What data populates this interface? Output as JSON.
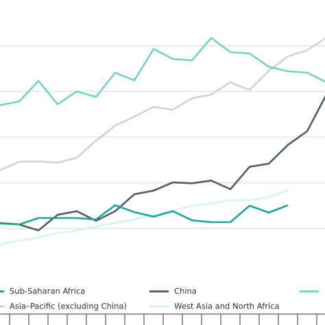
{
  "chart_data": {
    "type": "line",
    "categories": [
      null,
      null,
      null,
      null,
      null,
      null,
      null,
      null,
      null,
      null,
      null,
      null,
      null,
      null,
      null,
      null,
      null,
      null
    ],
    "ylim": [
      0,
      6
    ],
    "yticks": [
      1,
      2,
      3,
      4,
      5
    ],
    "grid": true,
    "series": [
      {
        "name": "Sub-Saharan Africa",
        "color": "#1aa39a",
        "values": [
          1.11,
          1.09,
          1.23,
          1.23,
          1.23,
          1.2,
          1.51,
          1.36,
          1.26,
          1.38,
          1.18,
          1.14,
          1.14,
          1.5,
          1.35,
          1.51,
          null,
          null
        ]
      },
      {
        "name": "China",
        "color": "#4f5d5e",
        "values": [
          1.12,
          1.09,
          0.96,
          1.3,
          1.38,
          1.17,
          1.38,
          1.75,
          1.83,
          2.01,
          1.99,
          2.05,
          1.86,
          2.35,
          2.42,
          2.83,
          3.13,
          3.93
        ]
      },
      {
        "color": "#6dd6c2",
        "values": [
          3.7,
          3.78,
          4.23,
          3.72,
          4.0,
          3.88,
          4.41,
          4.24,
          4.93,
          4.71,
          4.68,
          5.17,
          4.86,
          4.83,
          4.54,
          4.44,
          4.41,
          4.2
        ]
      },
      {
        "name": "Asia–Pacific (excluding China)",
        "color": "#cfd3d3",
        "values": [
          2.28,
          2.46,
          2.47,
          2.44,
          2.55,
          2.92,
          3.25,
          3.45,
          3.66,
          3.6,
          3.85,
          3.93,
          4.2,
          4.03,
          4.45,
          4.77,
          4.9,
          5.17
        ]
      },
      {
        "name": "West Asia and North Africa",
        "color": "#d6f4ec",
        "values": [
          0.66,
          0.73,
          0.81,
          0.9,
          0.96,
          1.05,
          1.12,
          1.2,
          1.3,
          1.39,
          1.5,
          1.55,
          1.62,
          1.62,
          1.69,
          1.84,
          null,
          null
        ]
      }
    ]
  }
}
